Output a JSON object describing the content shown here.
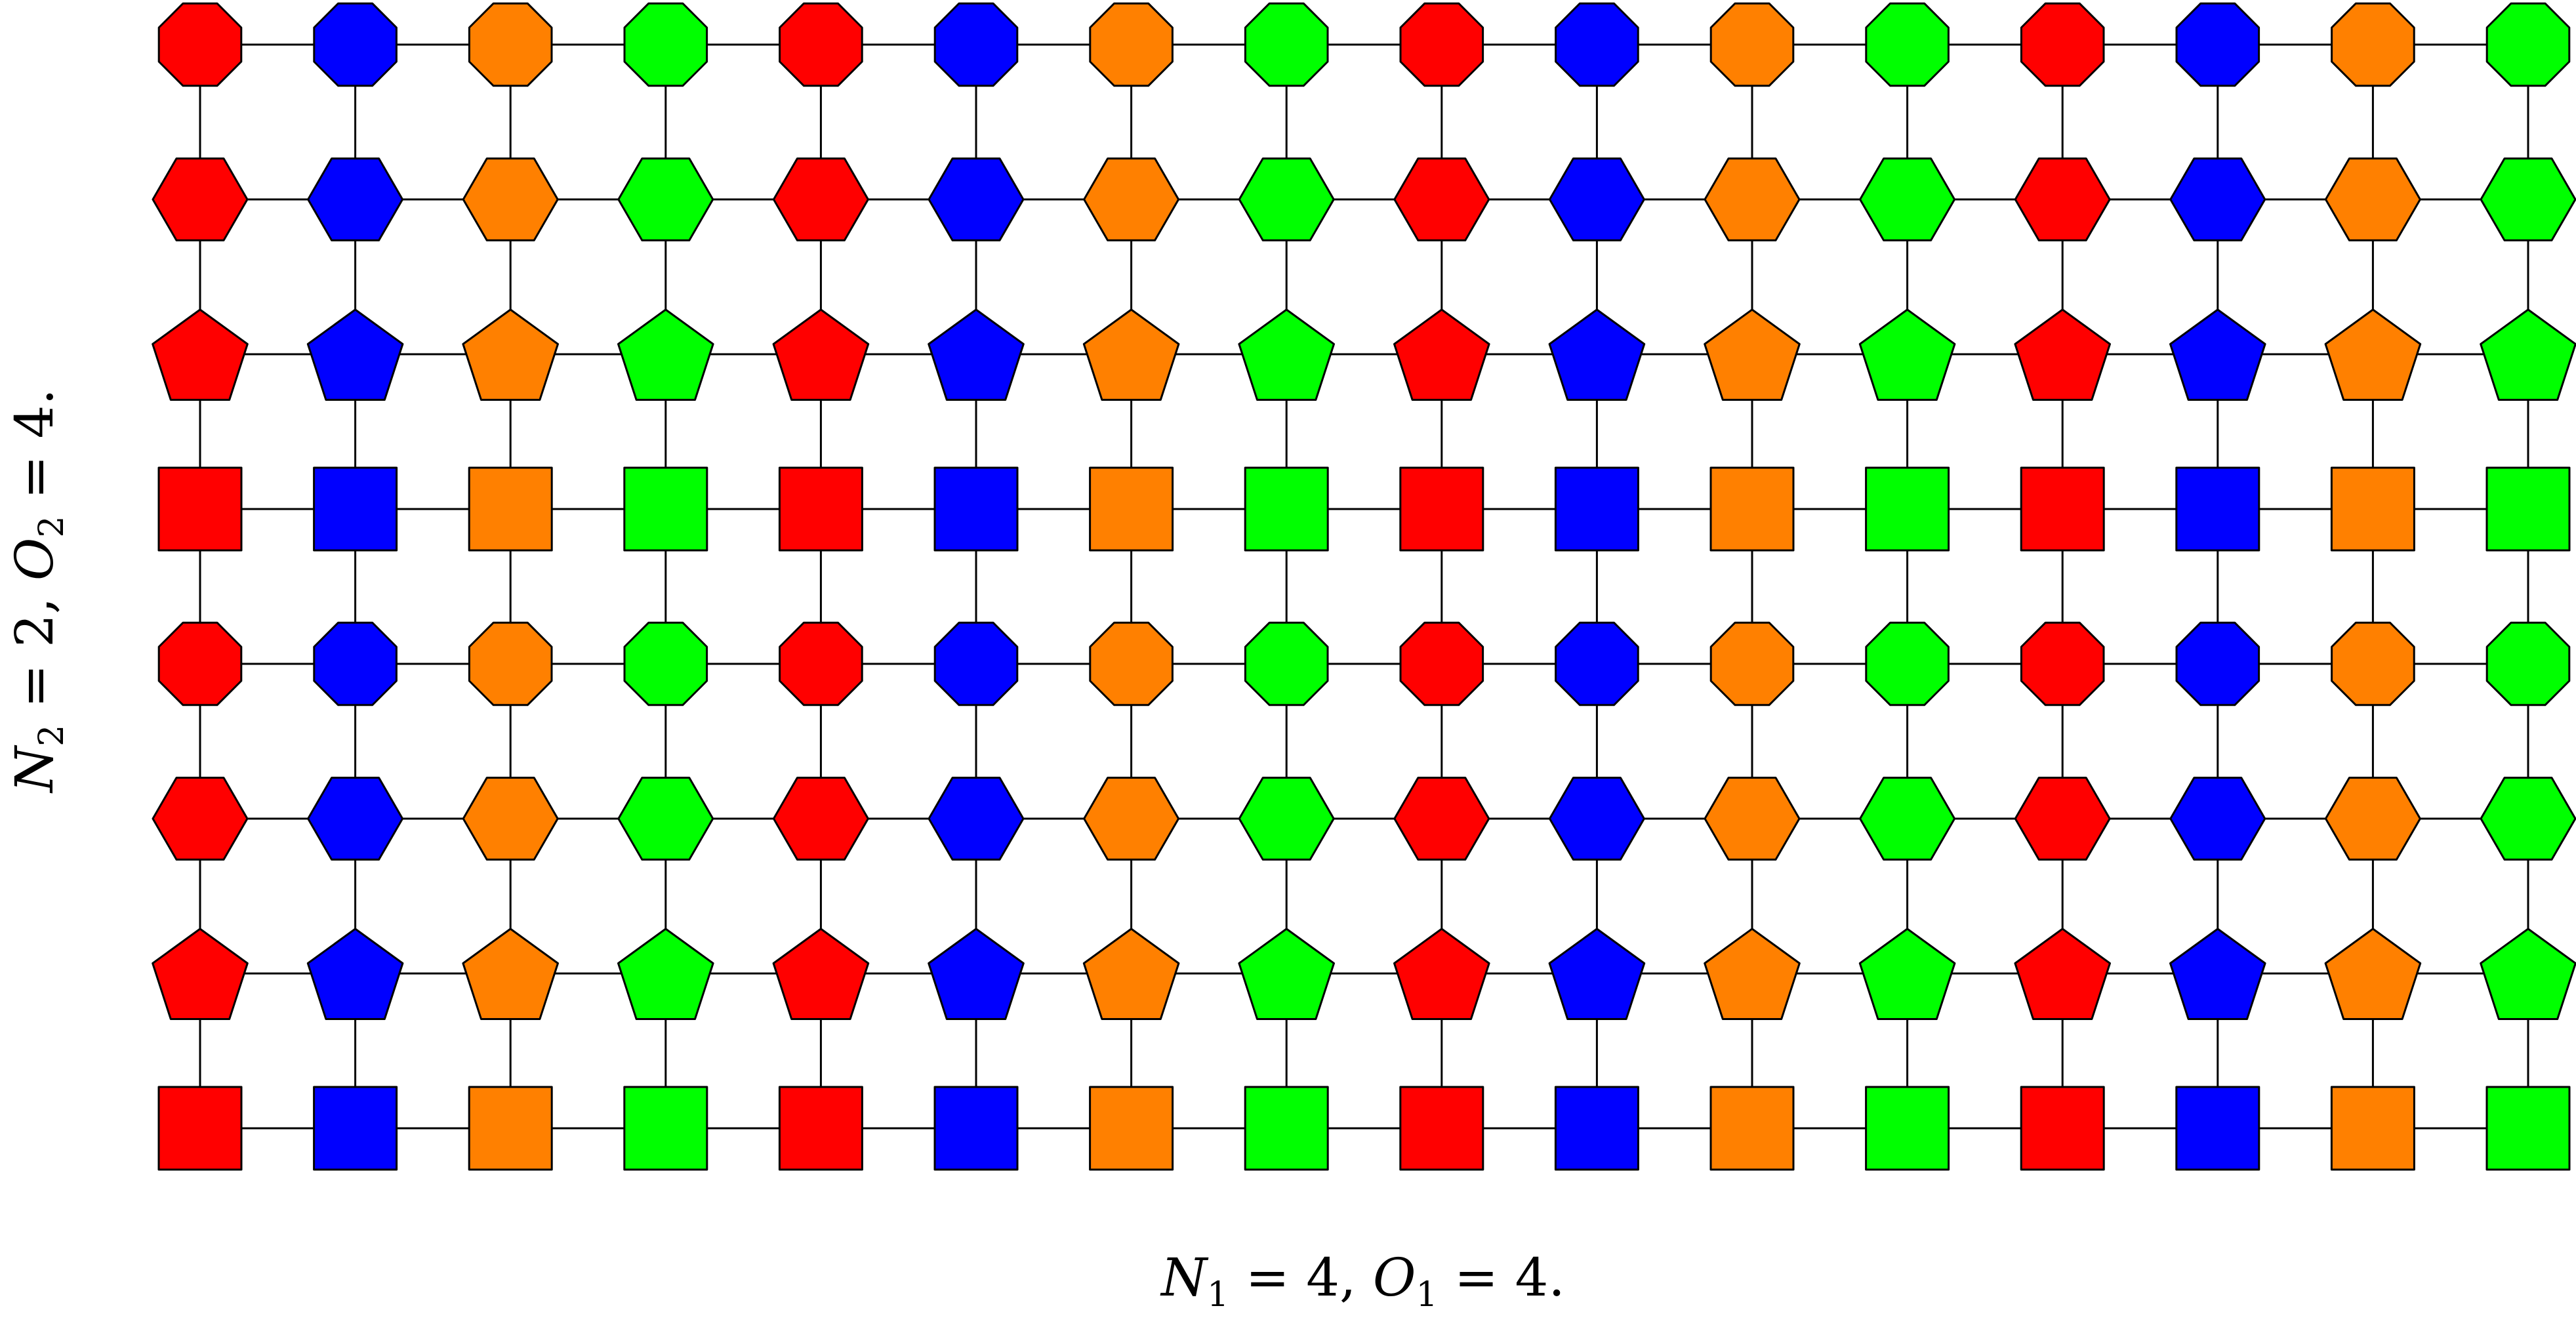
{
  "diagram": {
    "columns": 16,
    "rows": 8,
    "color_cycle": [
      "#ff0000",
      "#0000ff",
      "#ff8000",
      "#00ff00"
    ],
    "color_names": [
      "red",
      "blue",
      "orange",
      "green"
    ],
    "row_shapes_top_to_bottom": [
      "octagon",
      "hexagon",
      "pentagon",
      "square",
      "octagon",
      "hexagon",
      "pentagon",
      "square"
    ],
    "edge_color": "#000000",
    "node_stroke": "#000000"
  },
  "labels": {
    "x_label": {
      "n_symbol": "N",
      "n_sub": "1",
      "n_value": " = 4, ",
      "o_symbol": "O",
      "o_sub": "1",
      "o_value": " = 4."
    },
    "y_label": {
      "n_symbol": "N",
      "n_sub": "2",
      "n_value": " = 2, ",
      "o_symbol": "O",
      "o_sub": "2",
      "o_value": " = 4."
    }
  }
}
